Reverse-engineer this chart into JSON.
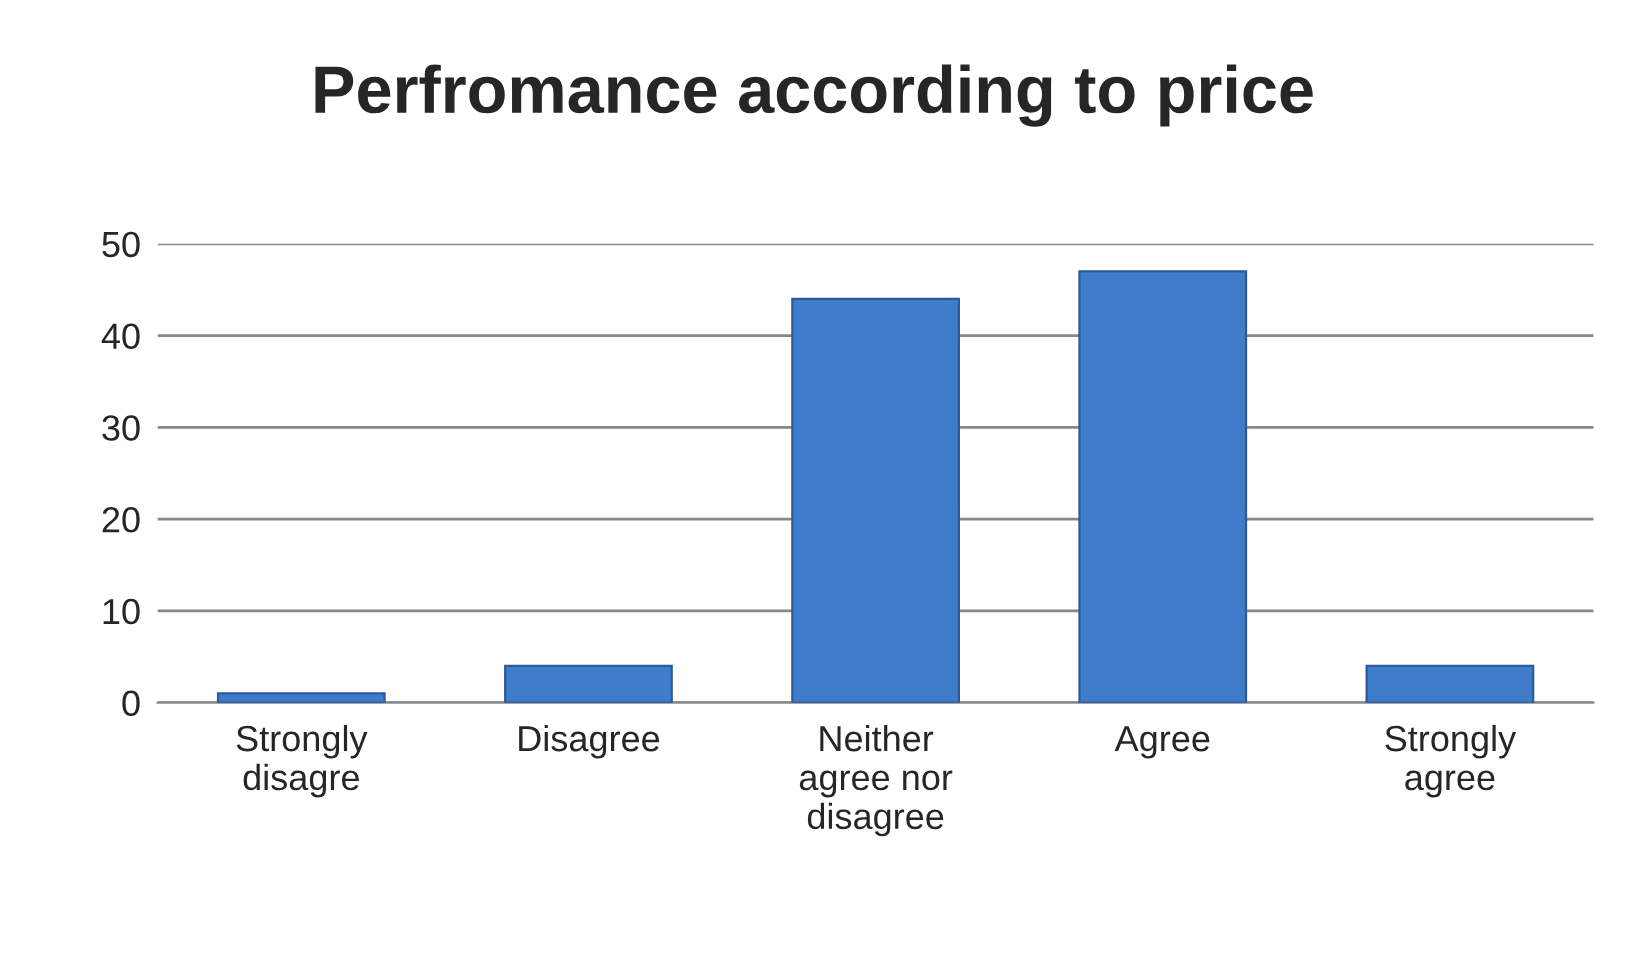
{
  "chart_data": {
    "type": "bar",
    "title": "Perfromance according to price",
    "categories": [
      "Strongly\ndisagre",
      "Disagree",
      "Neither\nagree nor\ndisagree",
      "Agree",
      "Strongly\nagree"
    ],
    "values": [
      1,
      4,
      44,
      47,
      4
    ],
    "color": "#3f7dcb",
    "ylim": [
      0,
      50
    ],
    "yticks": [
      0,
      10,
      20,
      30,
      40,
      50
    ],
    "grid": "y",
    "legend": false
  }
}
